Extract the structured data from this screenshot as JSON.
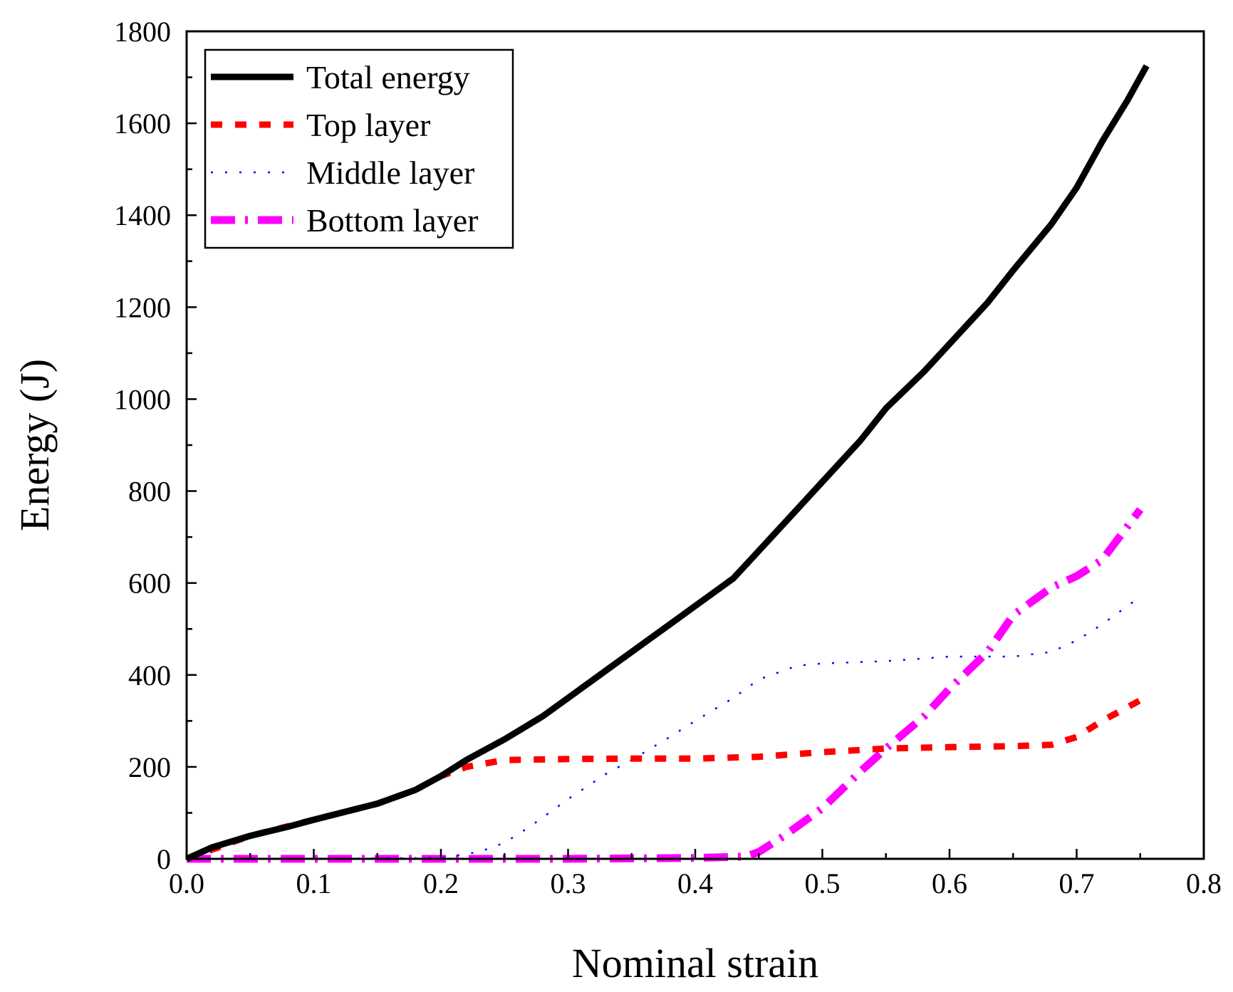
{
  "chart_data": {
    "type": "line",
    "xlabel": "Nominal strain",
    "ylabel": "Energy (J)",
    "xlim": [
      0.0,
      0.8
    ],
    "ylim": [
      0,
      1800
    ],
    "x_ticks": [
      "0.0",
      "0.1",
      "0.2",
      "0.3",
      "0.4",
      "0.5",
      "0.6",
      "0.7",
      "0.8"
    ],
    "y_ticks": [
      "0",
      "200",
      "400",
      "600",
      "800",
      "1000",
      "1200",
      "1400",
      "1600",
      "1800"
    ],
    "grid": false,
    "legend_position": "top-left",
    "series": [
      {
        "name": "Total energy",
        "color": "#000000",
        "style": "solid",
        "x": [
          0.0,
          0.02,
          0.05,
          0.08,
          0.1,
          0.15,
          0.18,
          0.2,
          0.22,
          0.25,
          0.28,
          0.3,
          0.33,
          0.35,
          0.38,
          0.4,
          0.43,
          0.45,
          0.48,
          0.5,
          0.53,
          0.55,
          0.58,
          0.6,
          0.63,
          0.65,
          0.68,
          0.7,
          0.72,
          0.74,
          0.755
        ],
        "y": [
          0,
          25,
          50,
          70,
          85,
          120,
          150,
          180,
          215,
          260,
          310,
          350,
          410,
          450,
          510,
          550,
          610,
          670,
          760,
          820,
          910,
          980,
          1060,
          1120,
          1210,
          1280,
          1380,
          1460,
          1560,
          1650,
          1725
        ]
      },
      {
        "name": "Top layer",
        "color": "#ff0000",
        "style": "dashed",
        "x": [
          0.0,
          0.05,
          0.1,
          0.15,
          0.18,
          0.2,
          0.22,
          0.25,
          0.3,
          0.35,
          0.4,
          0.45,
          0.5,
          0.55,
          0.6,
          0.65,
          0.68,
          0.7,
          0.72,
          0.75
        ],
        "y": [
          0,
          50,
          85,
          120,
          150,
          180,
          200,
          215,
          217,
          218,
          218,
          222,
          232,
          240,
          243,
          245,
          248,
          265,
          300,
          345
        ]
      },
      {
        "name": "Middle layer",
        "color": "#0000ff",
        "style": "dotted",
        "x": [
          0.0,
          0.1,
          0.2,
          0.23,
          0.25,
          0.27,
          0.3,
          0.33,
          0.35,
          0.38,
          0.4,
          0.43,
          0.45,
          0.48,
          0.5,
          0.55,
          0.6,
          0.65,
          0.68,
          0.7,
          0.72,
          0.75
        ],
        "y": [
          0,
          0,
          2,
          15,
          35,
          70,
          130,
          185,
          215,
          265,
          300,
          350,
          390,
          420,
          425,
          430,
          440,
          440,
          450,
          475,
          510,
          570
        ]
      },
      {
        "name": "Bottom layer",
        "color": "#ff00ff",
        "style": "dashdot",
        "x": [
          0.0,
          0.1,
          0.2,
          0.3,
          0.4,
          0.44,
          0.45,
          0.47,
          0.5,
          0.53,
          0.55,
          0.58,
          0.6,
          0.63,
          0.65,
          0.68,
          0.7,
          0.72,
          0.75
        ],
        "y": [
          0,
          0,
          0,
          0,
          2,
          5,
          15,
          50,
          110,
          190,
          240,
          310,
          370,
          450,
          530,
          590,
          615,
          650,
          760
        ]
      }
    ]
  }
}
